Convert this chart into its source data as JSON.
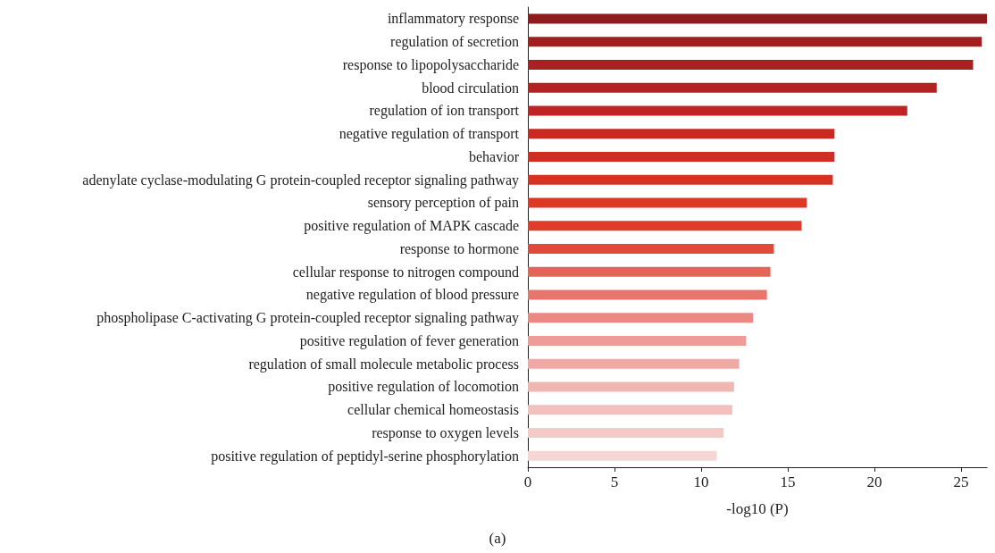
{
  "chart_data": {
    "type": "bar",
    "orientation": "horizontal",
    "xlabel": "-log10 (P)",
    "annotations": [
      "(a)"
    ],
    "categories": [
      "inflammatory response",
      "regulation of secretion",
      "response to lipopolysaccharide",
      "blood circulation",
      "regulation of ion transport",
      "negative regulation of transport",
      "behavior",
      "adenylate cyclase-modulating G protein-coupled receptor signaling pathway",
      "sensory perception of pain",
      "positive regulation of MAPK cascade",
      "response to hormone",
      "cellular response to nitrogen compound",
      "negative regulation of blood pressure",
      "phospholipase C-activating G protein-coupled receptor signaling pathway",
      "positive regulation of fever generation",
      "regulation of small molecule metabolic process",
      "positive regulation of locomotion",
      "cellular chemical homeostasis",
      "response to oxygen levels",
      "positive regulation of peptidyl-serine phosphorylation"
    ],
    "values": [
      26.5,
      26.2,
      25.7,
      23.6,
      21.9,
      17.7,
      17.7,
      17.6,
      16.1,
      15.8,
      14.2,
      14.0,
      13.8,
      13.0,
      12.6,
      12.2,
      11.9,
      11.8,
      11.3,
      10.9
    ],
    "colors": [
      "#8e1c1c",
      "#a01f1f",
      "#a82020",
      "#b52222",
      "#bf2424",
      "#c82a22",
      "#cf2e22",
      "#d63224",
      "#dc3826",
      "#e03c2a",
      "#e2483c",
      "#e46458",
      "#e8746c",
      "#eb8882",
      "#ee9c98",
      "#f0aaa6",
      "#f1b6b2",
      "#f2c0bd",
      "#f3cac8",
      "#f5d6d4"
    ],
    "xlim": [
      0,
      26.5
    ],
    "xticks": [
      0,
      5,
      10,
      15,
      20,
      25
    ],
    "grid": false
  }
}
